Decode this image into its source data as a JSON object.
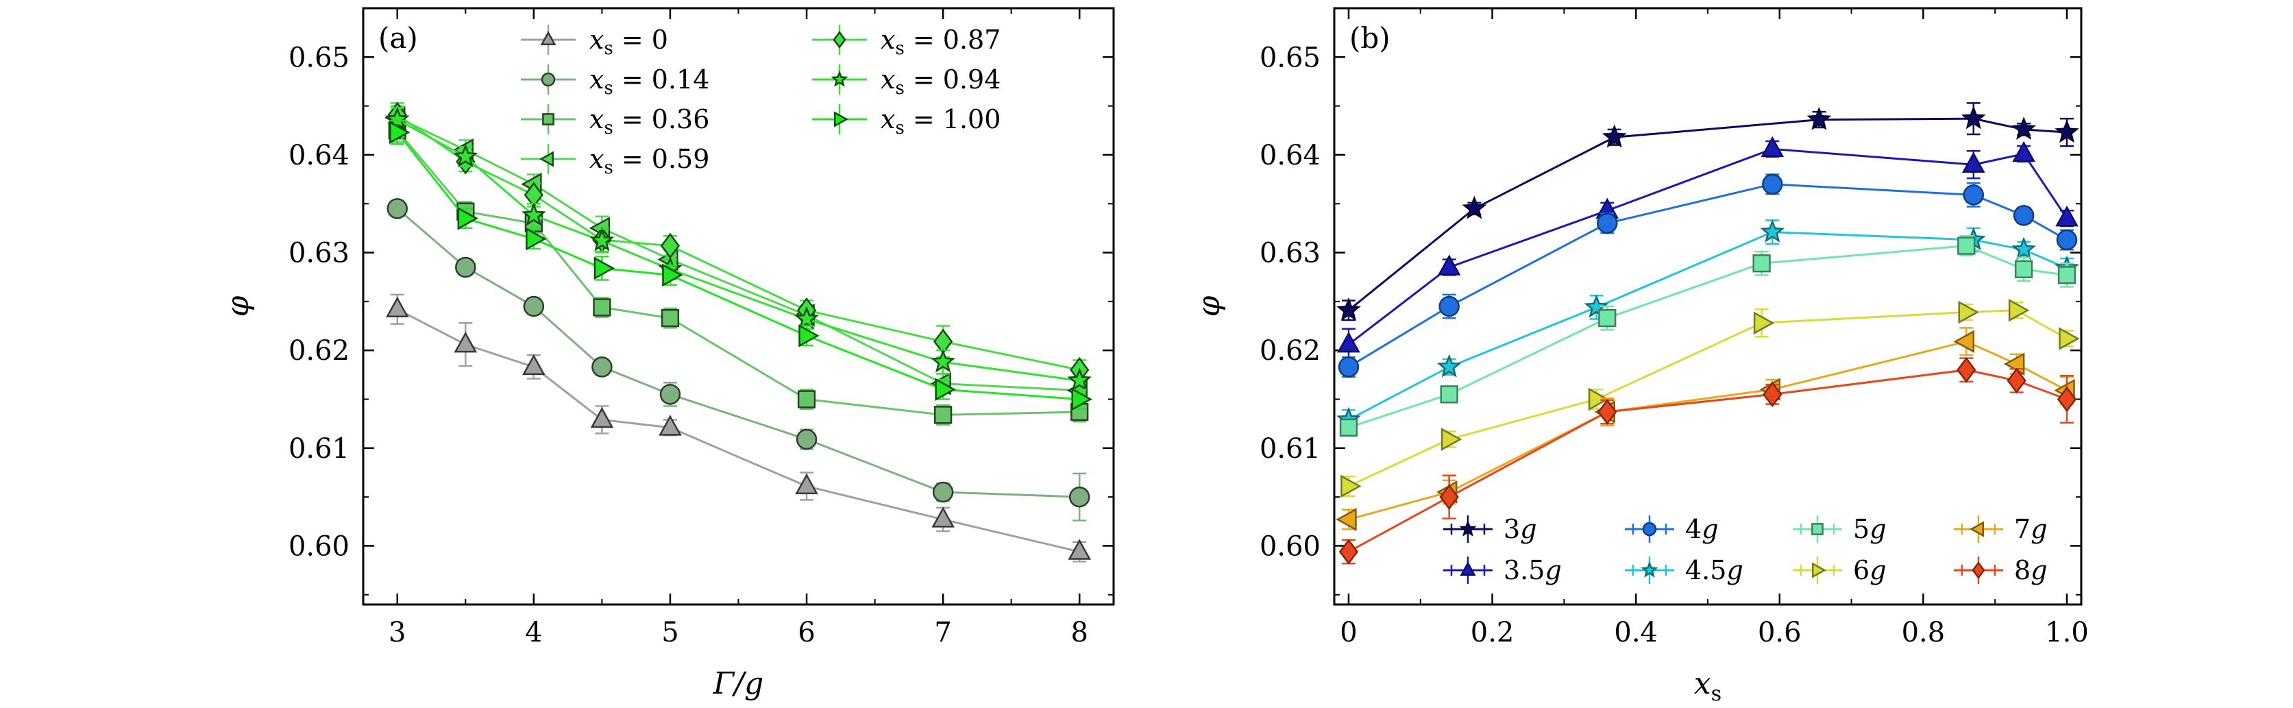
{
  "chart_data": [
    {
      "type": "line",
      "panel_label": "(a)",
      "xlabel": "Γ/g",
      "ylabel": "φ",
      "xlim": [
        2.75,
        8.25
      ],
      "ylim": [
        0.594,
        0.655
      ],
      "xticks": [
        3,
        4,
        5,
        6,
        7,
        8
      ],
      "yticks": [
        0.6,
        0.61,
        0.62,
        0.63,
        0.64,
        0.65
      ],
      "ytick_labels": [
        "0.60",
        "0.61",
        "0.62",
        "0.63",
        "0.64",
        "0.65"
      ],
      "x": [
        3,
        3.5,
        4,
        4.5,
        5,
        6,
        7,
        8
      ],
      "legend_columns": 2,
      "legend_position": "top-right",
      "series": [
        {
          "name": "x_s = 0",
          "label_value": "0",
          "color": "#a0a0a0",
          "marker": "triangle-up",
          "y": [
            0.6242,
            0.6206,
            0.6183,
            0.6129,
            0.6121,
            0.6061,
            0.6027,
            0.5994
          ],
          "err": [
            0.0015,
            0.0022,
            0.0012,
            0.0014,
            0.0008,
            0.0014,
            0.0012,
            0.001
          ]
        },
        {
          "name": "x_s = 0.14",
          "label_value": "0.14",
          "color": "#80b080",
          "marker": "circle",
          "y": [
            0.6345,
            0.6285,
            0.6245,
            0.6183,
            0.6155,
            0.6109,
            0.6055,
            0.605
          ],
          "err": [
            0.0008,
            0.0008,
            0.0008,
            0.0008,
            0.0012,
            0.001,
            0.0009,
            0.0024
          ]
        },
        {
          "name": "x_s = 0.36",
          "label_value": "0.36",
          "color": "#6ac46a",
          "marker": "square",
          "y": [
            0.6425,
            0.6342,
            0.633,
            0.6244,
            0.6233,
            0.615,
            0.6134,
            0.6137
          ],
          "err": [
            0.0012,
            0.001,
            0.001,
            0.001,
            0.001,
            0.001,
            0.001,
            0.001
          ]
        },
        {
          "name": "x_s = 0.59",
          "label_value": "0.59",
          "color": "#55d455",
          "marker": "triangle-left",
          "y": [
            0.6438,
            0.6405,
            0.637,
            0.6325,
            0.6293,
            0.6236,
            0.6166,
            0.6159
          ],
          "err": [
            0.0012,
            0.001,
            0.001,
            0.0012,
            0.001,
            0.001,
            0.001,
            0.001
          ]
        },
        {
          "name": "x_s = 0.87",
          "label_value": "0.87",
          "color": "#44dd44",
          "marker": "diamond",
          "y": [
            0.6441,
            0.6393,
            0.6359,
            0.6313,
            0.6307,
            0.6241,
            0.6209,
            0.618
          ],
          "err": [
            0.0012,
            0.001,
            0.0012,
            0.0012,
            0.001,
            0.001,
            0.0016,
            0.001
          ]
        },
        {
          "name": "x_s = 0.94",
          "label_value": "0.94",
          "color": "#33e233",
          "marker": "star",
          "y": [
            0.6436,
            0.6398,
            0.6338,
            0.6312,
            0.6283,
            0.6232,
            0.6188,
            0.6169
          ],
          "err": [
            0.0012,
            0.001,
            0.0012,
            0.0012,
            0.001,
            0.001,
            0.0012,
            0.001
          ]
        },
        {
          "name": "x_s = 1.00",
          "label_value": "1.00",
          "color": "#22e622",
          "marker": "triangle-right",
          "y": [
            0.6423,
            0.6335,
            0.6314,
            0.6284,
            0.6277,
            0.6215,
            0.616,
            0.615
          ],
          "err": [
            0.0012,
            0.001,
            0.001,
            0.0012,
            0.001,
            0.001,
            0.001,
            0.001
          ]
        }
      ]
    },
    {
      "type": "line",
      "panel_label": "(b)",
      "xlabel": "x_s",
      "ylabel": "φ",
      "xlim": [
        -0.02,
        1.02
      ],
      "ylim": [
        0.594,
        0.655
      ],
      "xticks": [
        0,
        0.2,
        0.4,
        0.6,
        0.8,
        1.0
      ],
      "xtick_labels": [
        "0",
        "0.2",
        "0.4",
        "0.6",
        "0.8",
        "1.0"
      ],
      "yticks": [
        0.6,
        0.61,
        0.62,
        0.63,
        0.64,
        0.65
      ],
      "ytick_labels": [
        "0.60",
        "0.61",
        "0.62",
        "0.63",
        "0.64",
        "0.65"
      ],
      "legend_columns": 4,
      "legend_position": "bottom-right",
      "series": [
        {
          "name": "3g",
          "num": "3",
          "color": "#0b0b60",
          "marker": "star",
          "x": [
            0,
            0.175,
            0.37,
            0.655,
            0.87,
            0.94,
            1.0
          ],
          "y": [
            0.6241,
            0.6345,
            0.6418,
            0.6436,
            0.6437,
            0.6426,
            0.6423
          ],
          "err": [
            0.001,
            0.0006,
            0.0008,
            0.0008,
            0.0016,
            0.0006,
            0.0014
          ]
        },
        {
          "name": "3.5g",
          "num": "3.5",
          "color": "#1a1ab4",
          "marker": "triangle-up",
          "x": [
            0,
            0.14,
            0.36,
            0.59,
            0.87,
            0.94,
            1.0
          ],
          "y": [
            0.6206,
            0.6285,
            0.6343,
            0.6406,
            0.639,
            0.6401,
            0.6335
          ],
          "err": [
            0.0016,
            0.0008,
            0.0008,
            0.0008,
            0.0014,
            0.0008,
            0.0008
          ]
        },
        {
          "name": "4g",
          "num": "4",
          "color": "#1f6fe0",
          "marker": "circle",
          "x": [
            0,
            0.14,
            0.36,
            0.59,
            0.87,
            0.94,
            1.0
          ],
          "y": [
            0.6183,
            0.6245,
            0.633,
            0.637,
            0.6359,
            0.6338,
            0.6313
          ],
          "err": [
            0.001,
            0.0012,
            0.001,
            0.001,
            0.0012,
            0.0008,
            0.001
          ]
        },
        {
          "name": "4.5g",
          "num": "4.5",
          "color": "#22c4d8",
          "marker": "star",
          "x": [
            0,
            0.14,
            0.345,
            0.59,
            0.87,
            0.94,
            1.0
          ],
          "y": [
            0.6129,
            0.6183,
            0.6244,
            0.6321,
            0.6313,
            0.6303,
            0.6284
          ],
          "err": [
            0.001,
            0.0008,
            0.0012,
            0.0012,
            0.0012,
            0.0008,
            0.001
          ]
        },
        {
          "name": "5g",
          "num": "5",
          "color": "#72e6a8",
          "marker": "square",
          "x": [
            0,
            0.14,
            0.36,
            0.575,
            0.86,
            0.94,
            1.0
          ],
          "y": [
            0.6121,
            0.6155,
            0.6233,
            0.6289,
            0.6307,
            0.6283,
            0.6277
          ],
          "err": [
            0.0008,
            0.0008,
            0.0012,
            0.0012,
            0.001,
            0.0012,
            0.0012
          ]
        },
        {
          "name": "6g",
          "num": "6",
          "color": "#d8dc38",
          "marker": "triangle-right",
          "x": [
            0,
            0.14,
            0.345,
            0.575,
            0.86,
            0.93,
            1.0
          ],
          "y": [
            0.6061,
            0.6109,
            0.615,
            0.6228,
            0.6239,
            0.6241,
            0.6212
          ],
          "err": [
            0.001,
            0.0008,
            0.001,
            0.0014,
            0.0008,
            0.0008,
            0.0008
          ]
        },
        {
          "name": "7g",
          "num": "7",
          "color": "#e8a81c",
          "marker": "triangle-left",
          "x": [
            0,
            0.14,
            0.36,
            0.59,
            0.86,
            0.93,
            1.0
          ],
          "y": [
            0.6027,
            0.6055,
            0.6137,
            0.616,
            0.6209,
            0.6186,
            0.6159
          ],
          "err": [
            0.001,
            0.0012,
            0.0014,
            0.001,
            0.0014,
            0.001,
            0.0014
          ]
        },
        {
          "name": "8g",
          "num": "8",
          "color": "#e8461c",
          "marker": "diamond",
          "x": [
            0,
            0.14,
            0.36,
            0.59,
            0.86,
            0.93,
            1.0
          ],
          "y": [
            0.5994,
            0.605,
            0.6137,
            0.6155,
            0.618,
            0.6169,
            0.615
          ],
          "err": [
            0.0012,
            0.0022,
            0.0012,
            0.001,
            0.0012,
            0.0012,
            0.0024
          ]
        }
      ]
    }
  ]
}
